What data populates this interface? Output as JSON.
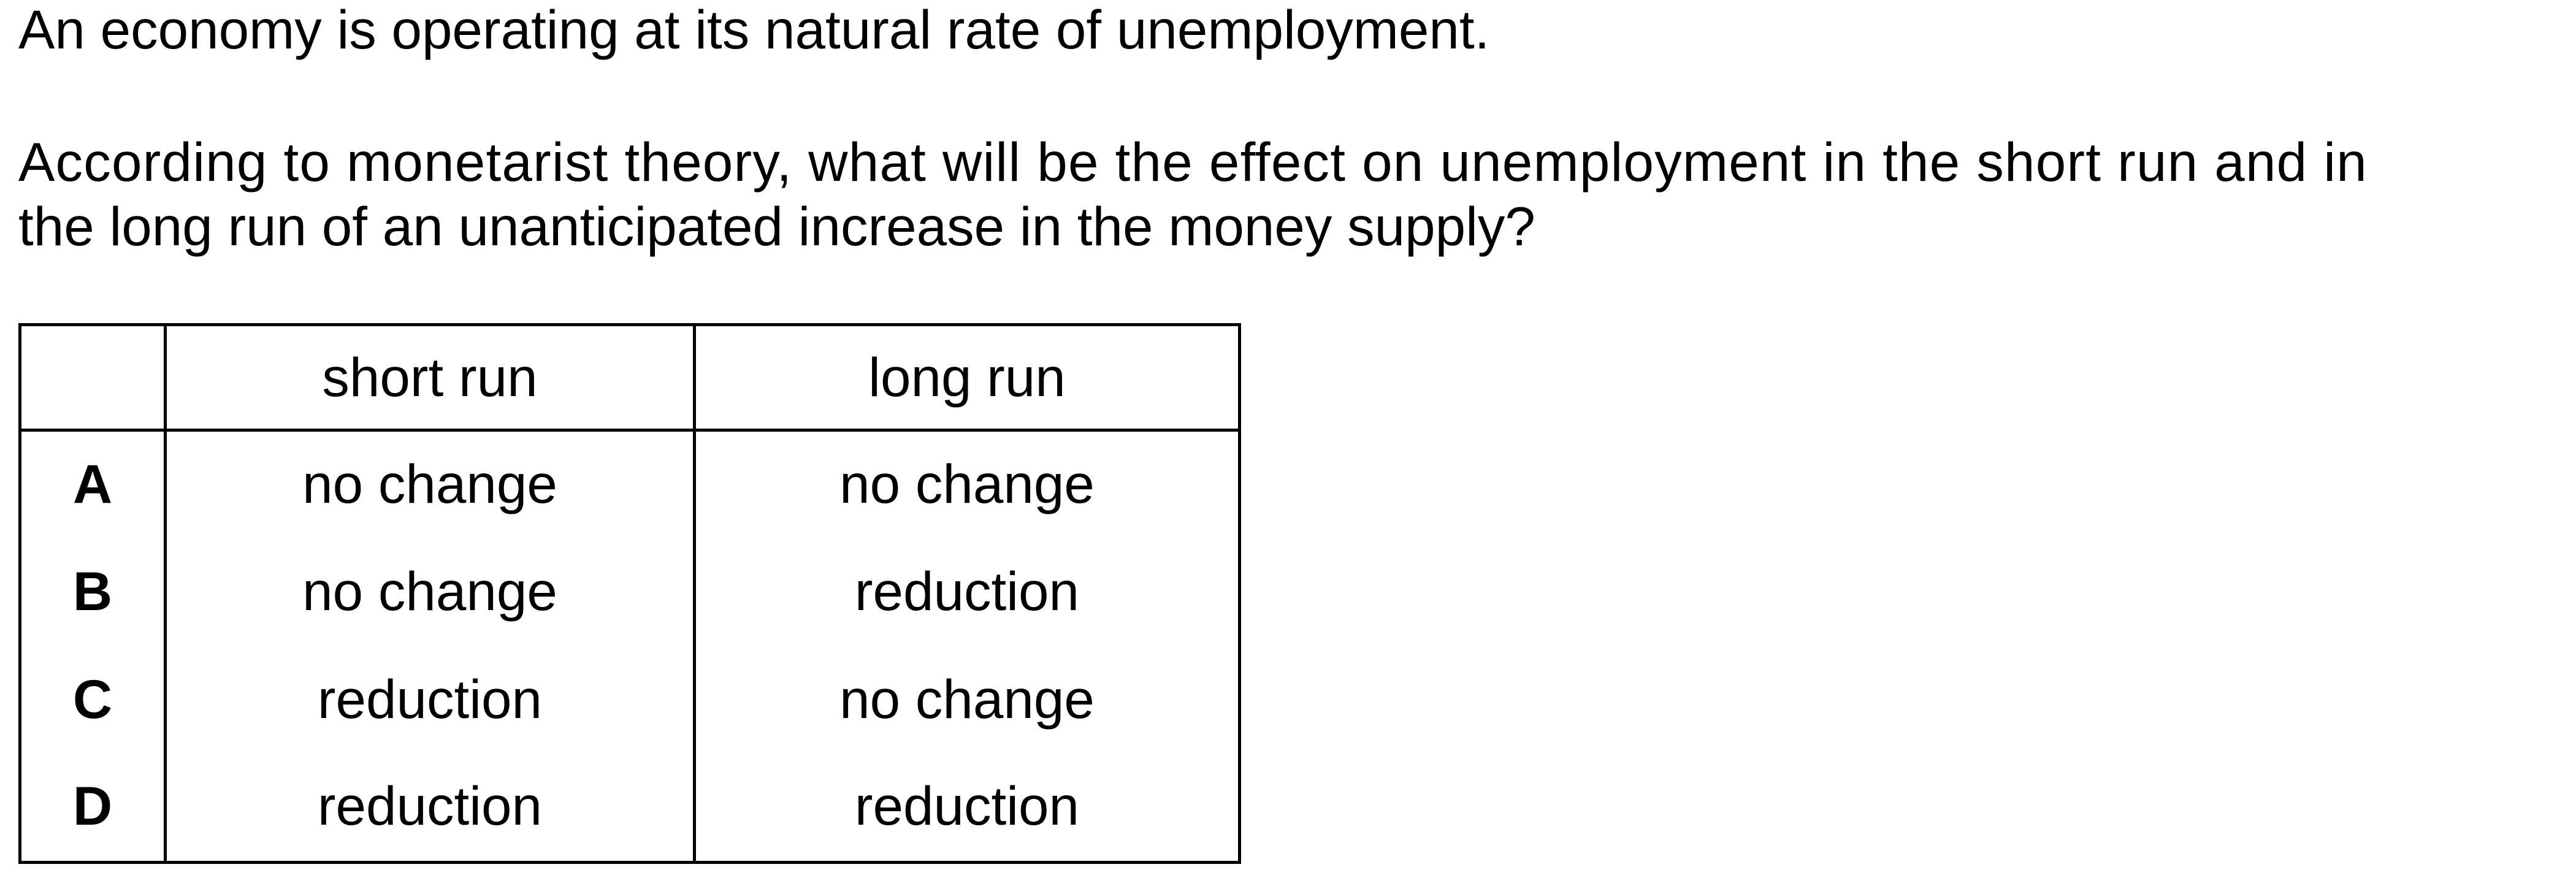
{
  "question": {
    "intro": "An economy is operating at its natural rate of unemployment.",
    "prompt_line_1": "According to monetarist theory, what will be the effect on unemployment in the short run and in",
    "prompt_line_2": "the long run of an unanticipated increase in the money supply?"
  },
  "table": {
    "headers": [
      "",
      "short run",
      "long run"
    ],
    "rows": [
      {
        "letter": "A",
        "short_run": "no change",
        "long_run": "no change"
      },
      {
        "letter": "B",
        "short_run": "no change",
        "long_run": "reduction"
      },
      {
        "letter": "C",
        "short_run": "reduction",
        "long_run": "no change"
      },
      {
        "letter": "D",
        "short_run": "reduction",
        "long_run": "reduction"
      }
    ]
  }
}
